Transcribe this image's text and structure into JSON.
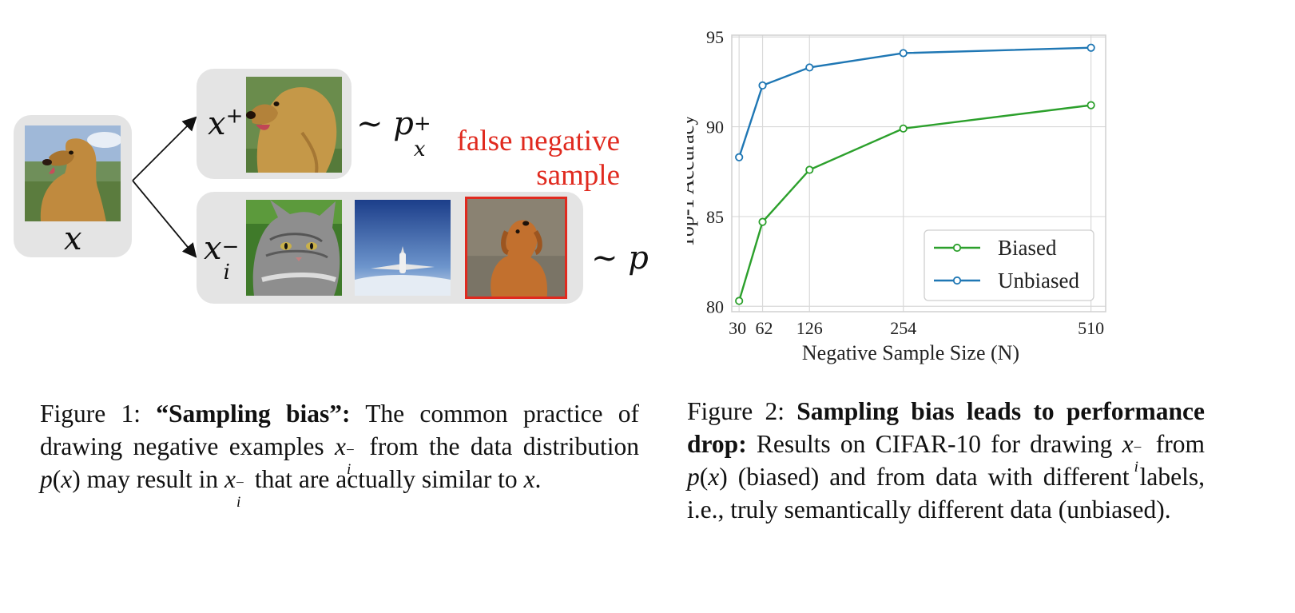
{
  "figure1": {
    "anchor_label": "x",
    "positive_label": "x",
    "positive_sup": "+",
    "positive_dist": "p",
    "positive_dist_sub": "x",
    "positive_dist_sup": "+",
    "negative_label": "x",
    "negative_sub": "i",
    "negative_sup": "−",
    "negative_dist": "p",
    "tilde": "∼",
    "false_negative_line1": "false negative",
    "false_negative_line2": "sample",
    "highlight_color": "#e02a1f",
    "images": [
      "golden-retriever-photo",
      "golden-retriever-closeup-photo",
      "cat-photo",
      "airplane-photo",
      "small-dog-photo"
    ]
  },
  "chart_data": {
    "type": "line",
    "x": [
      30,
      62,
      126,
      254,
      510
    ],
    "series": [
      {
        "name": "Biased",
        "values": [
          80.3,
          84.7,
          87.6,
          89.9,
          91.2
        ],
        "color": "#2ca02c"
      },
      {
        "name": "Unbiased",
        "values": [
          88.3,
          92.3,
          93.3,
          94.1,
          94.4
        ],
        "color": "#1f77b4"
      }
    ],
    "xticks": [
      "30",
      "62",
      "126",
      "254",
      "510"
    ],
    "yticks": [
      "80",
      "85",
      "90",
      "95"
    ],
    "xlabel": "Negative Sample Size (N)",
    "ylabel": "Top-1 Accuracy",
    "xlim": [
      20,
      530
    ],
    "ylim": [
      79.7,
      95.1
    ],
    "grid": true,
    "legend_position": "bottom-right",
    "marker": "open-circle"
  },
  "captions": {
    "fig1_prefix": "Figure 1: ",
    "fig1_title": "“Sampling bias”:",
    "fig1_t1": " The common practice of drawing negative examples ",
    "fig1_x": "x",
    "fig1_sub": "i",
    "fig1_sup": "−",
    "fig1_t2": " from the data distribution ",
    "fig1_px": "p",
    "fig1_paren_open": "(",
    "fig1_paren_close": ")",
    "fig1_t3": " may result in ",
    "fig1_t4": " that are actually similar to ",
    "fig1_end": ".",
    "fig2_prefix": "Figure 2:  ",
    "fig2_title": "Sampling bias leads to performance drop:",
    "fig2_t1": " Results on CIFAR-10 for drawing ",
    "fig2_x": "x",
    "fig2_sub": "i",
    "fig2_sup": "−",
    "fig2_t2": " from ",
    "fig2_px": "p",
    "fig2_paren_open": "(",
    "fig2_paren_close": ")",
    "fig2_t3": " (biased) and from data with different labels, i.e., truly semantically different data (unbiased)."
  }
}
